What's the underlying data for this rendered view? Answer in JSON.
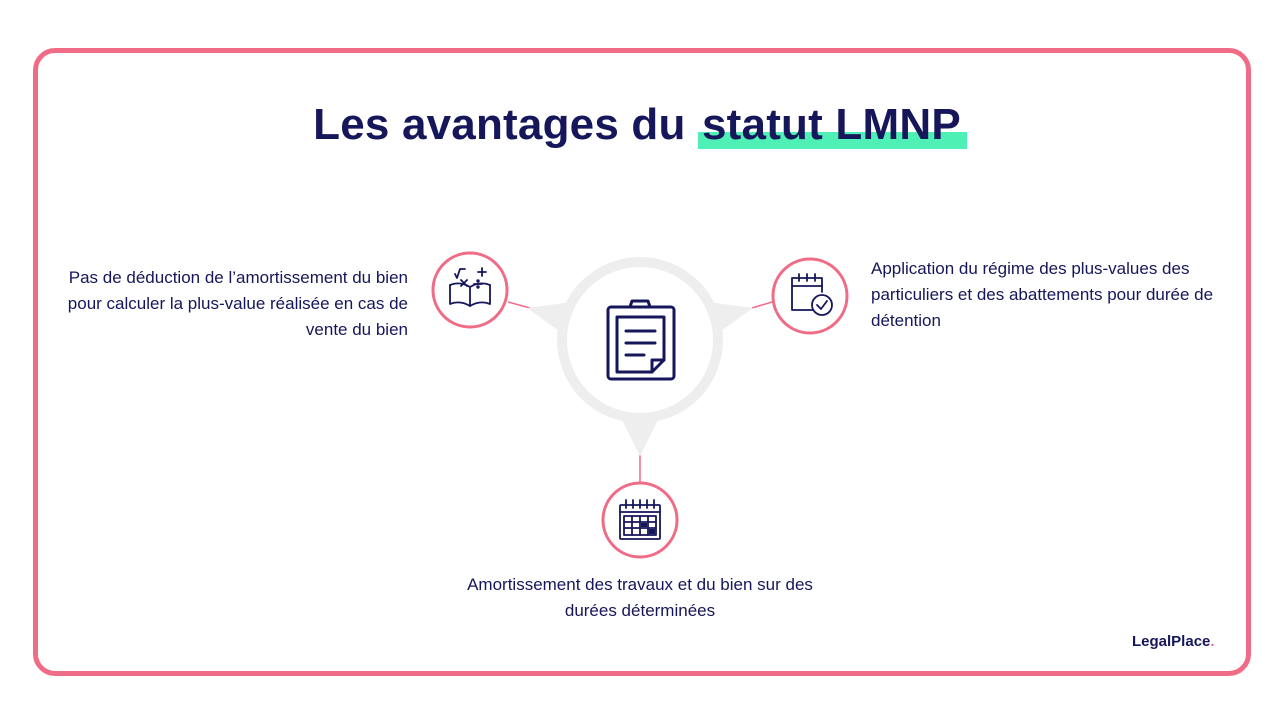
{
  "title": {
    "prefix": "Les avantages du ",
    "highlight": "statut LMNP"
  },
  "items": {
    "left": "Pas de déduction de l’amortissement du bien pour calculer la plus-value réalisée en cas de vente du bien",
    "right": "Application du régime des plus-values des particuliers et des abattements pour durée de détention",
    "bottom": "Amortissement des travaux et du bien sur des durées déterminées"
  },
  "icons": {
    "center": "clipboard-document-icon",
    "left": "math-book-icon",
    "right": "calendar-check-icon",
    "bottom": "calendar-grid-icon"
  },
  "logo": {
    "name": "LegalPlace",
    "dot": "."
  },
  "colors": {
    "frame": "#f06b85",
    "navy": "#16165a",
    "highlight": "#4ff0b6",
    "hub": "#eeeeee"
  }
}
